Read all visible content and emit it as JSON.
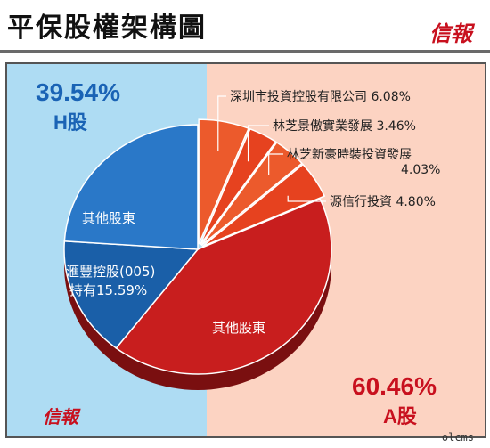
{
  "header": {
    "title": "平保股權架構圖",
    "brand": "信報"
  },
  "chart_data": {
    "type": "pie",
    "title": "平保股權架構圖",
    "groups": [
      {
        "name": "H股",
        "percent_label": "39.54%",
        "value": 39.54,
        "color": "#1a63b5"
      },
      {
        "name": "A股",
        "percent_label": "60.46%",
        "value": 60.46,
        "color": "#c8101e"
      }
    ],
    "slices": [
      {
        "label": "深圳市投資控股有限公司",
        "value_label": "6.08%",
        "value": 6.08,
        "group": "A股",
        "color": "#ec5a2c"
      },
      {
        "label": "林芝景傲實業發展",
        "value_label": "3.46%",
        "value": 3.46,
        "group": "A股",
        "color": "#e6421f"
      },
      {
        "label": "林芝新豪時裝投資發展",
        "value_label": "4.03%",
        "value": 4.03,
        "group": "A股",
        "color": "#ec5a2c"
      },
      {
        "label": "源信行投資",
        "value_label": "4.80%",
        "value": 4.8,
        "group": "A股",
        "color": "#e6421f"
      },
      {
        "label": "其他股東",
        "value_label": "",
        "value": 42.09,
        "group": "A股",
        "color": "#c81e1e"
      },
      {
        "label": "滙豐控股(005)",
        "value_label": "持有15.59%",
        "value": 15.59,
        "group": "H股",
        "color": "#1a5fa8"
      },
      {
        "label": "其他股東",
        "value_label": "",
        "value": 23.95,
        "group": "H股",
        "color": "#2a78c8"
      }
    ]
  },
  "footer": {
    "brand": "信報",
    "credit": "olcms"
  }
}
